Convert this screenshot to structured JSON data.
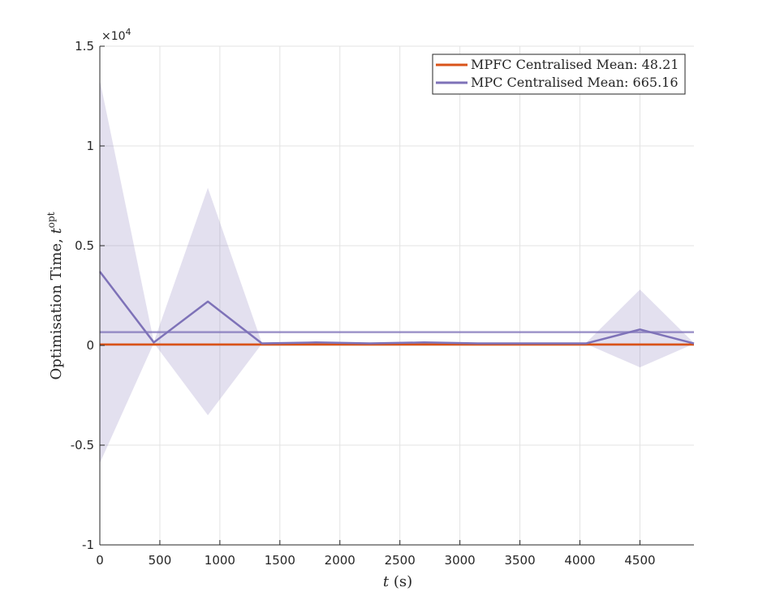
{
  "chart_data": {
    "type": "line",
    "xlabel": "t (s)",
    "xlabel_var": "t",
    "xlabel_unit": "(s)",
    "ylabel": "Optimisation Time, t̄^opt",
    "ylabel_main": "Optimisation Time, ",
    "ylabel_var": "t",
    "ylabel_sup": "opt",
    "xlim": [
      0,
      4950
    ],
    "ylim": [
      -10000,
      15000
    ],
    "x_ticks": [
      0,
      500,
      1000,
      1500,
      2000,
      2500,
      3000,
      3500,
      4000,
      4500
    ],
    "y_ticks": [
      -10000,
      -5000,
      0,
      5000,
      10000,
      15000
    ],
    "y_tick_labels": [
      "-1",
      "-0.5",
      "0",
      "0.5",
      "1",
      "1.5"
    ],
    "y_exponent_label": "×10",
    "y_exponent_power": "4",
    "grid": true,
    "legend_position": "top-right",
    "series": [
      {
        "name": "MPFC Centralised Mean: 48.21",
        "color": "#d95319",
        "x": [
          0,
          450,
          900,
          1350,
          1800,
          2250,
          2700,
          3150,
          3600,
          4050,
          4500,
          4950
        ],
        "values": [
          48,
          48,
          48,
          48,
          48,
          48,
          48,
          48,
          48,
          48,
          48,
          48
        ],
        "mean": 48.21
      },
      {
        "name": "MPC Centralised Mean: 665.16",
        "color": "#7e72b8",
        "x": [
          0,
          450,
          900,
          1350,
          1800,
          2250,
          2700,
          3150,
          3600,
          4050,
          4500,
          4950
        ],
        "values": [
          3700,
          150,
          2200,
          100,
          150,
          100,
          150,
          100,
          100,
          100,
          800,
          100
        ],
        "band_upper": [
          13300,
          180,
          7900,
          120,
          180,
          120,
          180,
          120,
          120,
          120,
          2800,
          120
        ],
        "band_lower": [
          -5900,
          120,
          -3500,
          80,
          120,
          80,
          120,
          80,
          80,
          80,
          -1100,
          80
        ],
        "mean": 665.16
      }
    ]
  }
}
